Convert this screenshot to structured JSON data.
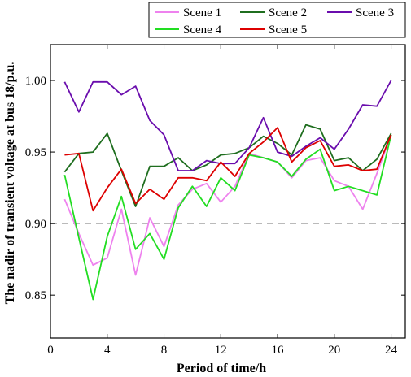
{
  "chart_data": {
    "type": "line",
    "xlabel": "Period of time/h",
    "ylabel": "The nadir of transient voltage at bus 18/p.u.",
    "xlim": [
      0,
      25
    ],
    "ylim": [
      0.82,
      1.025
    ],
    "xticks": [
      0,
      4,
      8,
      12,
      16,
      20,
      24
    ],
    "yticks": [
      0.85,
      0.9,
      0.95,
      1.0
    ],
    "reference_line": {
      "y": 0.9,
      "style": "dashed",
      "color": "#b0b0b0"
    },
    "legend_position": "top-right",
    "x": [
      1,
      2,
      3,
      4,
      5,
      6,
      7,
      8,
      9,
      10,
      11,
      12,
      13,
      14,
      15,
      16,
      17,
      18,
      19,
      20,
      21,
      22,
      23,
      24
    ],
    "series": [
      {
        "name": "Scene 1",
        "color": "#ee82ee",
        "values": [
          0.917,
          0.893,
          0.871,
          0.876,
          0.91,
          0.864,
          0.904,
          0.884,
          0.913,
          0.924,
          0.928,
          0.915,
          0.926,
          0.949,
          0.946,
          0.943,
          0.932,
          0.944,
          0.946,
          0.93,
          0.926,
          0.91,
          0.935,
          0.962
        ]
      },
      {
        "name": "Scene 2",
        "color": "#1f6e1f",
        "values": [
          0.936,
          0.949,
          0.95,
          0.963,
          0.937,
          0.912,
          0.94,
          0.94,
          0.946,
          0.937,
          0.941,
          0.948,
          0.949,
          0.953,
          0.961,
          0.956,
          0.948,
          0.969,
          0.966,
          0.944,
          0.946,
          0.937,
          0.945,
          0.963
        ]
      },
      {
        "name": "Scene 3",
        "color": "#6a0dad",
        "values": [
          0.999,
          0.978,
          0.999,
          0.999,
          0.99,
          0.996,
          0.972,
          0.962,
          0.937,
          0.937,
          0.944,
          0.942,
          0.942,
          0.953,
          0.974,
          0.95,
          0.947,
          0.954,
          0.96,
          0.952,
          0.966,
          0.983,
          0.982,
          1.0
        ]
      },
      {
        "name": "Scene 4",
        "color": "#22dd22",
        "values": [
          0.934,
          0.89,
          0.847,
          0.891,
          0.919,
          0.882,
          0.893,
          0.875,
          0.911,
          0.926,
          0.912,
          0.932,
          0.923,
          0.948,
          0.946,
          0.943,
          0.933,
          0.945,
          0.952,
          0.923,
          0.926,
          0.923,
          0.92,
          0.962
        ]
      },
      {
        "name": "Scene 5",
        "color": "#dd0000",
        "values": [
          0.948,
          0.949,
          0.909,
          0.925,
          0.938,
          0.914,
          0.924,
          0.917,
          0.932,
          0.932,
          0.93,
          0.943,
          0.933,
          0.949,
          0.957,
          0.967,
          0.943,
          0.953,
          0.958,
          0.94,
          0.941,
          0.937,
          0.938,
          0.962
        ]
      }
    ]
  }
}
